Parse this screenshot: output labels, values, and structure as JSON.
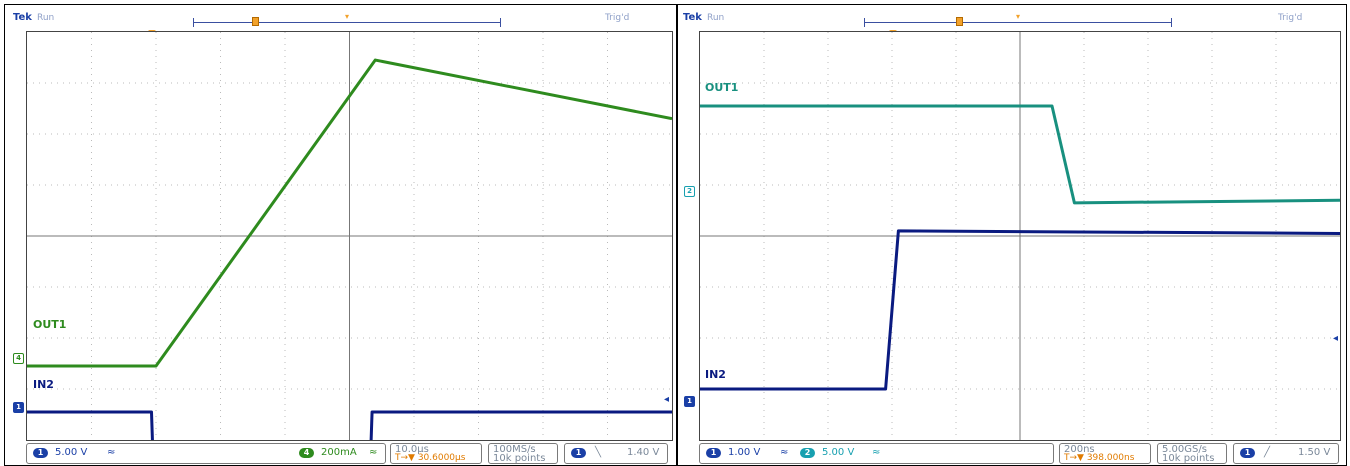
{
  "panels": [
    {
      "brand": "Tek",
      "state": "Run",
      "trig_status": "Trig'd",
      "ch_labels": {
        "out": "OUT1",
        "in": "IN2"
      },
      "markers": {
        "ch4": "4",
        "ch1": "1",
        "trig": "T"
      },
      "status": {
        "ch1_num": "1",
        "ch1_scale": "5.00 V",
        "ch1_bw": "≈",
        "ch4_num": "4",
        "ch4_scale": "200mA",
        "ch4_bw": "≈",
        "timebase": "10.0µs",
        "delay": "T→▼ 30.6000µs",
        "sample_rate": "100MS/s",
        "record": "10k points",
        "trig_ch": "1",
        "trig_slope": "╲",
        "trig_level": "1.40 V"
      }
    },
    {
      "brand": "Tek",
      "state": "Run",
      "trig_status": "Trig'd",
      "ch_labels": {
        "out": "OUT1",
        "in": "IN2"
      },
      "markers": {
        "ch2": "2",
        "ch1": "1",
        "trig": "T"
      },
      "status": {
        "ch1_num": "1",
        "ch1_scale": "1.00 V",
        "ch1_bw": "≈",
        "ch2_num": "2",
        "ch2_scale": "5.00 V",
        "ch2_bw": "≈",
        "timebase": "200ns",
        "delay": "T→▼ 398.000ns",
        "sample_rate": "5.00GS/s",
        "record": "10k points",
        "trig_ch": "1",
        "trig_slope": "╱",
        "trig_level": "1.50 V"
      }
    }
  ],
  "chart_data": [
    {
      "type": "line",
      "title": "",
      "xlabel": "",
      "ylabel": "",
      "grid": true,
      "xlim": [
        0,
        10
      ],
      "ylim": [
        -4,
        4
      ],
      "series": [
        {
          "name": "OUT1",
          "color": "#2e8b1e",
          "x": [
            0,
            2.0,
            5.4,
            10
          ],
          "y": [
            -2.55,
            -2.55,
            3.45,
            2.3
          ]
        },
        {
          "name": "IN2",
          "color": "#0a1a80",
          "x": [
            0,
            1.93,
            1.95,
            5.33,
            5.35,
            10
          ],
          "y": [
            -3.45,
            -3.45,
            -4.2,
            -4.2,
            -3.45,
            -3.45
          ]
        }
      ]
    },
    {
      "type": "line",
      "title": "",
      "xlabel": "",
      "ylabel": "",
      "grid": true,
      "xlim": [
        0,
        10
      ],
      "ylim": [
        -4,
        4
      ],
      "series": [
        {
          "name": "OUT1",
          "color": "#18907f",
          "x": [
            0,
            5.5,
            5.85,
            10
          ],
          "y": [
            2.55,
            2.55,
            0.65,
            0.7
          ]
        },
        {
          "name": "IN2",
          "color": "#0a1a80",
          "x": [
            0,
            2.9,
            3.1,
            10
          ],
          "y": [
            -3.0,
            -3.0,
            0.1,
            0.05
          ]
        }
      ]
    }
  ]
}
